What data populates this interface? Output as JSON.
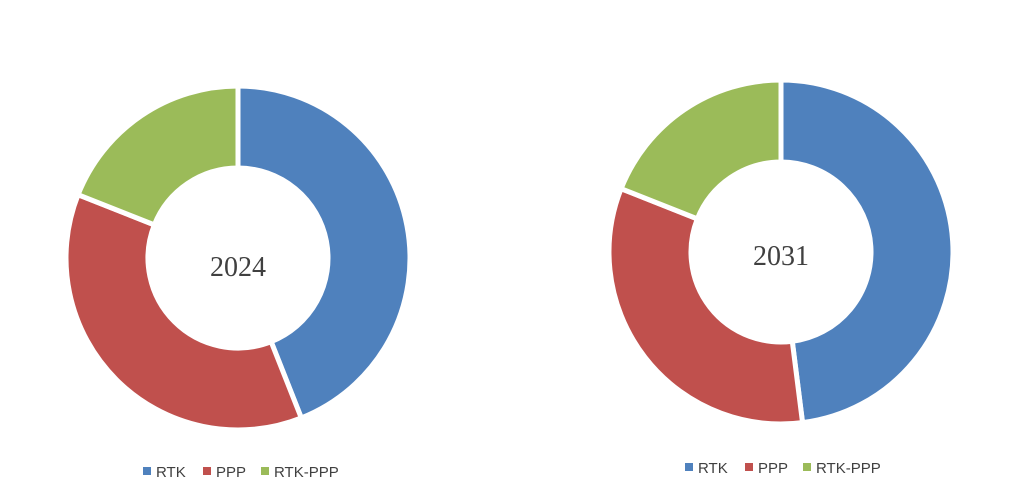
{
  "chart_data": [
    {
      "type": "donut",
      "title": "2024",
      "categories": [
        "RTK",
        "PPP",
        "RTK-PPP"
      ],
      "values": [
        44,
        37,
        19
      ],
      "colors": [
        "#4f81bd",
        "#c0504d",
        "#9bbb59"
      ],
      "legend": [
        "RTK",
        "PPP",
        "RTK-PPP"
      ],
      "legend_position": "bottom"
    },
    {
      "type": "donut",
      "title": "2031",
      "categories": [
        "RTK",
        "PPP",
        "RTK-PPP"
      ],
      "values": [
        48,
        33,
        19
      ],
      "colors": [
        "#4f81bd",
        "#c0504d",
        "#9bbb59"
      ],
      "legend": [
        "RTK",
        "PPP",
        "RTK-PPP"
      ],
      "legend_position": "bottom"
    }
  ]
}
